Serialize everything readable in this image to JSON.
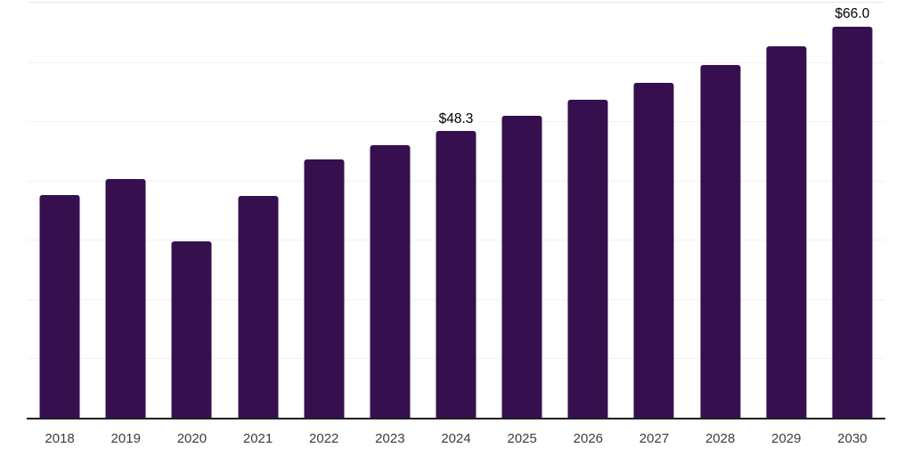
{
  "chart_data": {
    "type": "bar",
    "title": "",
    "xlabel": "",
    "ylabel": "",
    "categories": [
      "2018",
      "2019",
      "2020",
      "2021",
      "2022",
      "2023",
      "2024",
      "2025",
      "2026",
      "2027",
      "2028",
      "2029",
      "2030"
    ],
    "values": [
      37.6,
      40.2,
      29.8,
      37.4,
      43.5,
      46.0,
      48.3,
      50.9,
      53.6,
      56.5,
      59.5,
      62.7,
      66.0
    ],
    "annotations": [
      {
        "category": "2024",
        "text": "$48.3"
      },
      {
        "category": "2030",
        "text": "$66.0"
      }
    ],
    "ylim": [
      0,
      70
    ],
    "gridline_step": 10,
    "grid": "horizontal",
    "legend_position": "none",
    "colors": {
      "bar": "#36104E",
      "gridline": "#f2f2f4",
      "plot_top_border": "#e7e7ea",
      "axis_line": "#1f1f1f",
      "tick_label": "#3c3c3c",
      "annotation_text": "#000000",
      "background": "#ffffff"
    }
  }
}
